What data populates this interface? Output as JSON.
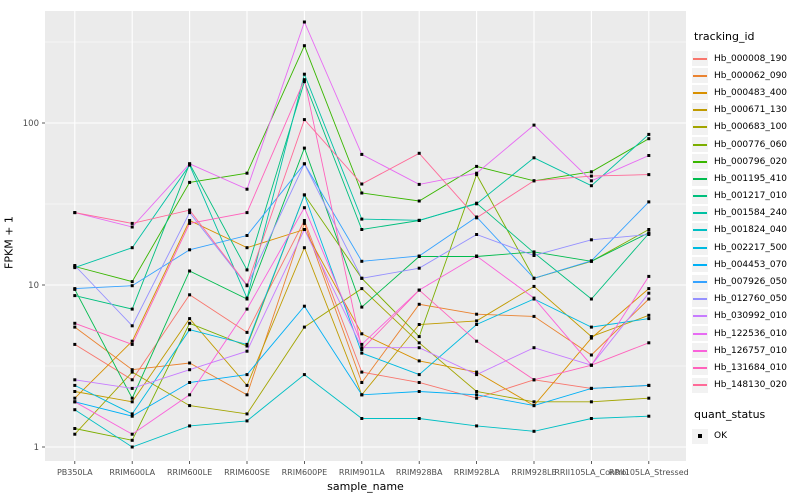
{
  "colors": {
    "panel_bg": "#EBEBEB",
    "grid_major": "#FFFFFF",
    "grid_minor": "#F7F7F7",
    "tick_text": "#4D4D4D",
    "axis_title": "#000000",
    "marker": "#000000",
    "legend_key_bg": "#F2F2F2"
  },
  "legend": {
    "tracking_title": "tracking_id",
    "quant_title": "quant_status",
    "quant_items": [
      {
        "label": "OK"
      }
    ]
  },
  "chart_data": {
    "type": "line",
    "title": "",
    "xlabel": "sample_name",
    "ylabel": "FPKM + 1",
    "y_scale": "log10",
    "y_ticks": [
      1,
      10,
      100
    ],
    "ylim": [
      1,
      450
    ],
    "grid": "major+minor",
    "legend_position": "right",
    "marker": "black-square",
    "categories": [
      "PB350LA",
      "RRIM600LA",
      "RRIM600LE",
      "RRIM600SE",
      "RRIM600PE",
      "RRIM901LA",
      "RRIM928BA",
      "RRIM928LA",
      "RRIM928LE",
      "RRII105LA_Control",
      "RRII105LA_Stressed"
    ],
    "series": [
      {
        "name": "Hb_000008_190",
        "color": "#F8766D",
        "values": [
          4.3,
          2.6,
          8.7,
          5.1,
          25,
          2.9,
          2.5,
          2.0,
          2.6,
          2.3,
          2.4
        ]
      },
      {
        "name": "Hb_000062_090",
        "color": "#EA8331",
        "values": [
          5.5,
          3.0,
          3.3,
          2.1,
          24,
          2.5,
          7.6,
          6.6,
          6.4,
          3.7,
          8.2
        ]
      },
      {
        "name": "Hb_000483_400",
        "color": "#D89000",
        "values": [
          2.0,
          4.5,
          25,
          17,
          22,
          5.0,
          3.4,
          2.9,
          1.8,
          4.7,
          9.5
        ]
      },
      {
        "name": "Hb_000671_130",
        "color": "#C09B00",
        "values": [
          2.2,
          1.9,
          6.2,
          2.4,
          17,
          2.1,
          5.7,
          6.0,
          9.8,
          4.8,
          6.5
        ]
      },
      {
        "name": "Hb_000683_100",
        "color": "#A3A500",
        "values": [
          1.2,
          2.9,
          1.8,
          1.6,
          5.5,
          9.5,
          4.4,
          2.2,
          1.9,
          1.9,
          2.0
        ]
      },
      {
        "name": "Hb_000776_060",
        "color": "#7CAE00",
        "values": [
          1.3,
          1.1,
          5.8,
          4.2,
          36,
          11,
          4.8,
          48,
          11,
          14,
          22
        ]
      },
      {
        "name": "Hb_000796_020",
        "color": "#39B600",
        "values": [
          13,
          10.5,
          43,
          49,
          300,
          37,
          33,
          54,
          44,
          50,
          80
        ]
      },
      {
        "name": "Hb_001195_410",
        "color": "#00BB4E",
        "values": [
          9.4,
          2.0,
          12.2,
          8.2,
          70,
          7.3,
          15,
          15,
          16,
          14,
          21
        ]
      },
      {
        "name": "Hb_001217_010",
        "color": "#00BF7D",
        "values": [
          8.6,
          7.1,
          56,
          12.4,
          180,
          22,
          25,
          32,
          15.8,
          8.2,
          20.8
        ]
      },
      {
        "name": "Hb_001584_240",
        "color": "#00C1A3",
        "values": [
          12.8,
          17,
          55,
          8.3,
          200,
          25.5,
          25.1,
          31.7,
          61,
          41,
          85
        ]
      },
      {
        "name": "Hb_001824_040",
        "color": "#00BFC4",
        "values": [
          1.7,
          1.0,
          1.35,
          1.45,
          2.8,
          1.5,
          1.5,
          1.35,
          1.25,
          1.5,
          1.55
        ]
      },
      {
        "name": "Hb_002217_500",
        "color": "#00BAE0",
        "values": [
          2.4,
          1.6,
          5.3,
          4.3,
          36,
          3.8,
          2.8,
          5.7,
          8.2,
          5.5,
          6.2
        ]
      },
      {
        "name": "Hb_004453_070",
        "color": "#00B0F6",
        "values": [
          1.9,
          1.55,
          2.5,
          2.8,
          7.4,
          2.1,
          2.2,
          2.1,
          1.8,
          2.3,
          2.4
        ]
      },
      {
        "name": "Hb_007926_050",
        "color": "#35A2FF",
        "values": [
          9.5,
          9.9,
          16.5,
          20.2,
          56,
          14,
          15.1,
          26.3,
          11,
          14.1,
          32.6
        ]
      },
      {
        "name": "Hb_012760_050",
        "color": "#9590FF",
        "values": [
          13.2,
          5.6,
          28,
          9.9,
          56,
          11,
          12.7,
          20.5,
          15.2,
          19,
          20.5
        ]
      },
      {
        "name": "Hb_030992_010",
        "color": "#C77CFF",
        "values": [
          2.6,
          2.3,
          3.0,
          3.9,
          22,
          4.1,
          4.1,
          2.8,
          4.1,
          3.2,
          8.9
        ]
      },
      {
        "name": "Hb_122536_010",
        "color": "#E76BF3",
        "values": [
          28,
          22.8,
          56,
          39,
          420,
          64,
          41.8,
          49,
          97,
          44,
          63
        ]
      },
      {
        "name": "Hb_126757_010",
        "color": "#FA62DB",
        "values": [
          1.9,
          1.2,
          2.1,
          7.1,
          30,
          4.3,
          9.3,
          15.1,
          8.3,
          3.2,
          11.3
        ]
      },
      {
        "name": "Hb_131684_010",
        "color": "#FF62BC",
        "values": [
          5.8,
          4.3,
          24,
          28,
          185,
          4.0,
          9.3,
          4.5,
          2.6,
          3.2,
          4.4
        ]
      },
      {
        "name": "Hb_148130_020",
        "color": "#FF6A98",
        "values": [
          28,
          24,
          29,
          10,
          105,
          42,
          65,
          26,
          44,
          47,
          48
        ]
      }
    ]
  }
}
